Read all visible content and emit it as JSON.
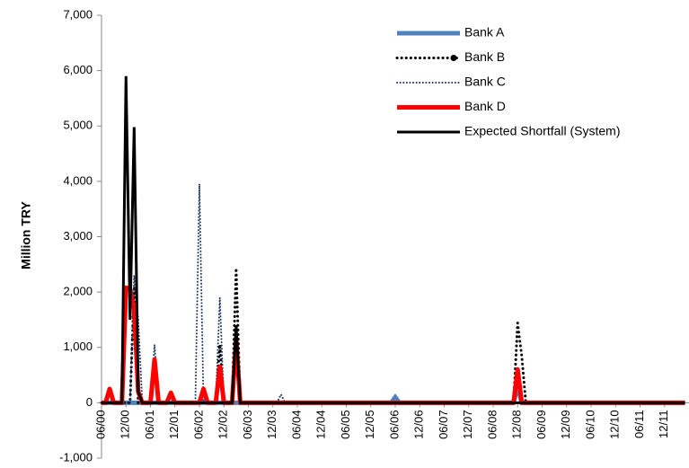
{
  "chart_data": {
    "type": "line",
    "y_label": "Million TRY",
    "categories": [
      "06/00",
      null,
      null,
      null,
      null,
      null,
      "12/00",
      null,
      null,
      null,
      null,
      null,
      "06/01",
      null,
      null,
      null,
      null,
      null,
      "12/01",
      null,
      null,
      null,
      null,
      null,
      "06/02",
      null,
      null,
      null,
      null,
      null,
      "12/02",
      null,
      null,
      null,
      null,
      null,
      "06/03",
      null,
      null,
      null,
      null,
      null,
      "12/03",
      null,
      null,
      null,
      null,
      null,
      "06/04",
      null,
      null,
      null,
      null,
      null,
      "12/04",
      null,
      null,
      null,
      null,
      null,
      "06/05",
      null,
      null,
      null,
      null,
      null,
      "12/05",
      null,
      null,
      null,
      null,
      null,
      "06/06",
      null,
      null,
      null,
      null,
      null,
      "12/06",
      null,
      null,
      null,
      null,
      null,
      "06/07",
      null,
      null,
      null,
      null,
      null,
      "12/07",
      null,
      null,
      null,
      null,
      null,
      "06/08",
      null,
      null,
      null,
      null,
      null,
      "12/08",
      null,
      null,
      null,
      null,
      null,
      "06/09",
      null,
      null,
      null,
      null,
      null,
      "12/09",
      null,
      null,
      null,
      null,
      null,
      "06/10",
      null,
      null,
      null,
      null,
      null,
      "12/10",
      null,
      null,
      null,
      null,
      null,
      "06/11",
      null,
      null,
      null,
      null,
      null,
      "12/11",
      null,
      null,
      null,
      null,
      null
    ],
    "series": [
      {
        "name": "Bank A",
        "color": "#4f81bd",
        "style": "solid",
        "values": [
          0,
          0,
          0,
          0,
          0,
          0,
          0,
          0,
          0,
          0,
          0,
          0,
          0,
          0,
          0,
          0,
          0,
          0,
          0,
          0,
          0,
          0,
          0,
          0,
          0,
          0,
          0,
          0,
          0,
          0,
          0,
          0,
          0,
          0,
          0,
          0,
          0,
          0,
          0,
          0,
          0,
          0,
          0,
          0,
          0,
          0,
          0,
          0,
          0,
          0,
          0,
          0,
          0,
          0,
          0,
          0,
          0,
          0,
          0,
          0,
          0,
          0,
          0,
          0,
          0,
          0,
          0,
          0,
          0,
          0,
          0,
          0,
          100,
          0,
          0,
          0,
          0,
          0,
          0,
          0,
          0,
          0,
          0,
          0,
          0,
          0,
          0,
          0,
          0,
          0,
          0,
          0,
          0,
          0,
          0,
          0,
          0,
          0,
          0,
          0,
          0,
          0,
          300,
          0,
          0,
          0,
          0,
          0,
          0,
          0,
          0,
          0,
          0,
          0,
          0,
          0,
          0,
          0,
          0,
          0,
          0,
          0,
          0,
          0,
          0,
          0,
          0,
          0,
          0,
          0,
          0,
          0,
          0,
          0,
          0,
          0,
          0,
          0,
          0,
          0,
          0,
          0,
          0,
          0
        ]
      },
      {
        "name": "Bank B",
        "color": "#000000",
        "style": "dotted-marker",
        "values": [
          0,
          0,
          0,
          0,
          0,
          0,
          0,
          0,
          2100,
          0,
          0,
          0,
          0,
          0,
          0,
          0,
          0,
          0,
          0,
          0,
          0,
          0,
          0,
          0,
          0,
          0,
          0,
          0,
          0,
          1050,
          0,
          0,
          0,
          2430,
          0,
          0,
          0,
          0,
          0,
          0,
          0,
          0,
          0,
          0,
          0,
          0,
          0,
          0,
          0,
          0,
          0,
          0,
          0,
          0,
          0,
          0,
          0,
          0,
          0,
          0,
          0,
          0,
          0,
          0,
          0,
          0,
          0,
          0,
          0,
          0,
          0,
          0,
          0,
          0,
          0,
          0,
          0,
          0,
          0,
          0,
          0,
          0,
          0,
          0,
          0,
          0,
          0,
          0,
          0,
          0,
          0,
          0,
          0,
          0,
          0,
          0,
          0,
          0,
          0,
          0,
          0,
          0,
          1440,
          850,
          0,
          0,
          0,
          0,
          0,
          0,
          0,
          0,
          0,
          0,
          0,
          0,
          0,
          0,
          0,
          0,
          0,
          0,
          0,
          0,
          0,
          0,
          0,
          0,
          0,
          0,
          0,
          0,
          0,
          0,
          0,
          0,
          0,
          0,
          0,
          0,
          0,
          0,
          0,
          0
        ]
      },
      {
        "name": "Bank C",
        "color": "#1f3864",
        "style": "dotted",
        "values": [
          0,
          0,
          0,
          0,
          0,
          0,
          0,
          0,
          2300,
          1500,
          0,
          0,
          0,
          1050,
          0,
          0,
          0,
          0,
          0,
          0,
          0,
          0,
          0,
          0,
          3950,
          0,
          0,
          0,
          0,
          1900,
          0,
          0,
          0,
          1000,
          0,
          0,
          0,
          0,
          0,
          0,
          0,
          0,
          0,
          0,
          150,
          0,
          0,
          0,
          0,
          0,
          0,
          0,
          0,
          0,
          0,
          0,
          0,
          0,
          0,
          0,
          0,
          0,
          0,
          0,
          0,
          0,
          0,
          0,
          0,
          0,
          0,
          0,
          0,
          0,
          0,
          0,
          0,
          0,
          0,
          0,
          0,
          0,
          0,
          0,
          0,
          0,
          0,
          0,
          0,
          0,
          0,
          0,
          0,
          0,
          0,
          0,
          0,
          0,
          0,
          0,
          0,
          0,
          600,
          0,
          0,
          0,
          0,
          0,
          0,
          0,
          0,
          0,
          0,
          0,
          0,
          0,
          0,
          0,
          0,
          0,
          0,
          0,
          0,
          0,
          0,
          0,
          0,
          0,
          0,
          0,
          0,
          0,
          0,
          0,
          0,
          0,
          0,
          0,
          0,
          0,
          0,
          0,
          0,
          0
        ]
      },
      {
        "name": "Bank D",
        "color": "#ff0000",
        "style": "thick",
        "values": [
          0,
          0,
          250,
          0,
          0,
          0,
          2080,
          2050,
          1700,
          200,
          0,
          0,
          0,
          780,
          0,
          0,
          0,
          180,
          0,
          0,
          0,
          0,
          0,
          0,
          0,
          250,
          0,
          0,
          0,
          650,
          0,
          0,
          0,
          1150,
          0,
          0,
          0,
          0,
          0,
          0,
          0,
          0,
          0,
          0,
          0,
          0,
          0,
          0,
          0,
          0,
          0,
          0,
          0,
          0,
          0,
          0,
          0,
          0,
          0,
          0,
          0,
          0,
          0,
          0,
          0,
          0,
          0,
          0,
          0,
          0,
          0,
          0,
          0,
          0,
          0,
          0,
          0,
          0,
          0,
          0,
          0,
          0,
          0,
          0,
          0,
          0,
          0,
          0,
          0,
          0,
          0,
          0,
          0,
          0,
          0,
          0,
          0,
          0,
          0,
          0,
          0,
          0,
          600,
          0,
          0,
          0,
          0,
          0,
          0,
          0,
          0,
          0,
          0,
          0,
          0,
          0,
          0,
          0,
          0,
          0,
          0,
          0,
          0,
          0,
          0,
          0,
          0,
          0,
          0,
          0,
          0,
          0,
          0,
          0,
          0,
          0,
          0,
          0,
          0,
          0,
          0,
          0,
          0,
          0
        ]
      },
      {
        "name": "Expected Shortfall (System)",
        "color": "#000000",
        "style": "solid",
        "values": [
          0,
          0,
          0,
          0,
          0,
          0,
          5900,
          1500,
          4980,
          200,
          0,
          0,
          0,
          0,
          0,
          0,
          0,
          0,
          0,
          0,
          0,
          0,
          0,
          0,
          0,
          0,
          0,
          0,
          0,
          0,
          0,
          0,
          0,
          1400,
          0,
          0,
          0,
          0,
          0,
          0,
          0,
          0,
          0,
          0,
          0,
          0,
          0,
          0,
          0,
          0,
          0,
          0,
          0,
          0,
          0,
          0,
          0,
          0,
          0,
          0,
          0,
          0,
          0,
          0,
          0,
          0,
          0,
          0,
          0,
          0,
          0,
          0,
          0,
          0,
          0,
          0,
          0,
          0,
          0,
          0,
          0,
          0,
          0,
          0,
          0,
          0,
          0,
          0,
          0,
          0,
          0,
          0,
          0,
          0,
          0,
          0,
          0,
          0,
          0,
          0,
          0,
          0,
          0,
          0,
          0,
          0,
          0,
          0,
          0,
          0,
          0,
          0,
          0,
          0,
          0,
          0,
          0,
          0,
          0,
          0,
          0,
          0,
          0,
          0,
          0,
          0,
          0,
          0,
          0,
          0,
          0,
          0,
          0,
          0,
          0,
          0,
          0,
          0,
          0,
          0,
          0,
          0,
          0,
          0
        ]
      }
    ],
    "ylim": [
      -1000,
      7000
    ],
    "yticks": [
      {
        "value": -1000,
        "label": "-1,000"
      },
      0,
      {
        "value": 1000,
        "label": "1,000"
      },
      {
        "value": 2000,
        "label": "2,000"
      },
      {
        "value": 3000,
        "label": "3,000"
      },
      {
        "value": 4000,
        "label": "4,000"
      },
      {
        "value": 5000,
        "label": "5,000"
      },
      {
        "value": 6000,
        "label": "6,000"
      },
      {
        "value": 7000,
        "label": "7,000"
      }
    ],
    "grid": false,
    "legend": "top-right"
  }
}
